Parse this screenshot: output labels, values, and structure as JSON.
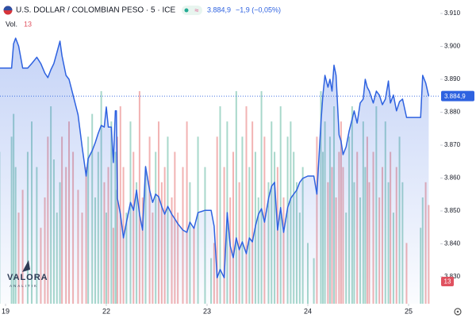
{
  "chart_data": {
    "type": "line",
    "title": "U.S. DOLLAR / COLOMBIAN PESO · 5 · ICE",
    "current_price": {
      "value": 3884.9,
      "label": "3.884,9"
    },
    "change_label": "−1,9 (−0,05%)",
    "logo": {
      "name": "VALORA",
      "tagline": "ANALITIK"
    },
    "xlim": [
      -0.055,
      4.315
    ],
    "xticks": [
      {
        "value": 0,
        "label": "19"
      },
      {
        "value": 1,
        "label": "22"
      },
      {
        "value": 2,
        "label": "23"
      },
      {
        "value": 3,
        "label": "24"
      },
      {
        "value": 4,
        "label": "25"
      }
    ],
    "ylim": [
      3821.8,
      3914.1
    ],
    "yticks": [
      {
        "value": 3910,
        "label": "3.910"
      },
      {
        "value": 3900,
        "label": "3.900"
      },
      {
        "value": 3890,
        "label": "3.890"
      },
      {
        "value": 3880,
        "label": "3.880"
      },
      {
        "value": 3870,
        "label": "3.870"
      },
      {
        "value": 3860,
        "label": "3.860"
      },
      {
        "value": 3850,
        "label": "3.850"
      },
      {
        "value": 3840,
        "label": "3.840"
      },
      {
        "value": 3830,
        "label": "3.830"
      }
    ],
    "x": [
      -0.06,
      0.06,
      0.08,
      0.1,
      0.13,
      0.17,
      0.22,
      0.26,
      0.31,
      0.35,
      0.39,
      0.42,
      0.45,
      0.48,
      0.51,
      0.54,
      0.56,
      0.6,
      0.63,
      0.67,
      0.72,
      0.76,
      0.8,
      0.82,
      0.86,
      0.89,
      0.92,
      0.95,
      0.98,
      1.0,
      1.02,
      1.05,
      1.07,
      1.09,
      1.1,
      1.11,
      1.14,
      1.17,
      1.2,
      1.24,
      1.27,
      1.3,
      1.33,
      1.36,
      1.39,
      1.43,
      1.46,
      1.49,
      1.52,
      1.55,
      1.58,
      1.61,
      1.65,
      1.68,
      1.71,
      1.76,
      1.8,
      1.83,
      1.87,
      1.91,
      1.98,
      2.04,
      2.07,
      2.1,
      2.13,
      2.17,
      2.2,
      2.23,
      2.26,
      2.29,
      2.32,
      2.35,
      2.39,
      2.42,
      2.45,
      2.48,
      2.51,
      2.54,
      2.57,
      2.61,
      2.64,
      2.67,
      2.7,
      2.73,
      2.76,
      2.8,
      2.83,
      2.86,
      2.89,
      2.92,
      2.95,
      3.0,
      3.06,
      3.09,
      3.13,
      3.15,
      3.17,
      3.2,
      3.22,
      3.24,
      3.26,
      3.28,
      3.31,
      3.33,
      3.35,
      3.38,
      3.41,
      3.44,
      3.46,
      3.49,
      3.52,
      3.55,
      3.57,
      3.59,
      3.61,
      3.65,
      3.68,
      3.71,
      3.74,
      3.77,
      3.8,
      3.82,
      3.85,
      3.88,
      3.91,
      3.94,
      3.98,
      4.12,
      4.14,
      4.17,
      4.2
    ],
    "series": [
      {
        "color": "#2e62e0",
        "values": [
          3893.4,
          3893.4,
          3900.8,
          3902.5,
          3900.1,
          3893.4,
          3893.4,
          3894.8,
          3896.7,
          3894.8,
          3891.9,
          3890.5,
          3892.9,
          3894.8,
          3898.2,
          3901.6,
          3897.2,
          3891.2,
          3890.0,
          3885.2,
          3879.2,
          3869.5,
          3860.6,
          3865.9,
          3868.3,
          3870.7,
          3873.6,
          3876.0,
          3875.5,
          3881.6,
          3875.5,
          3875.5,
          3864.7,
          3880.4,
          3880.4,
          3853.8,
          3849.0,
          3841.8,
          3846.6,
          3852.6,
          3850.2,
          3856.3,
          3849.0,
          3844.2,
          3863.5,
          3856.3,
          3852.6,
          3855.1,
          3854.3,
          3851.4,
          3849.0,
          3851.4,
          3849.0,
          3847.6,
          3846.1,
          3844.2,
          3843.5,
          3846.6,
          3844.7,
          3849.5,
          3850.2,
          3850.2,
          3845.4,
          3829.7,
          3832.2,
          3829.7,
          3849.5,
          3839.4,
          3835.8,
          3841.8,
          3838.2,
          3840.6,
          3837.0,
          3841.8,
          3840.6,
          3845.4,
          3849.0,
          3850.7,
          3846.6,
          3853.8,
          3857.5,
          3858.7,
          3844.2,
          3851.0,
          3843.5,
          3851.0,
          3853.8,
          3855.1,
          3856.3,
          3858.7,
          3859.9,
          3860.6,
          3860.6,
          3855.1,
          3876.7,
          3885.2,
          3891.2,
          3887.6,
          3890.0,
          3886.4,
          3894.3,
          3891.2,
          3873.1,
          3871.2,
          3867.1,
          3869.5,
          3874.3,
          3877.9,
          3880.4,
          3876.7,
          3882.8,
          3884.0,
          3890.0,
          3887.6,
          3886.4,
          3882.8,
          3886.4,
          3885.2,
          3882.3,
          3884.0,
          3889.5,
          3882.8,
          3885.2,
          3880.4,
          3883.2,
          3884.0,
          3878.4,
          3878.4,
          3891.2,
          3888.9,
          3884.9
        ]
      }
    ],
    "volume": {
      "name": "Vol.",
      "up_color": "#a8d8cb",
      "down_color": "#f2b3b3",
      "ylim": [
        0,
        40
      ],
      "values": [
        20,
        22,
        25,
        18,
        12,
        15,
        20,
        24,
        18,
        10,
        14,
        22,
        26,
        19,
        12,
        16,
        22,
        18,
        24,
        20,
        15,
        12,
        18,
        22,
        25,
        14,
        20,
        28,
        16,
        12,
        18,
        24,
        10,
        20,
        15,
        22,
        26,
        18,
        12,
        24,
        20,
        16,
        28,
        14,
        18,
        22,
        12,
        20,
        24,
        16,
        18,
        22,
        14,
        20,
        12,
        18,
        24,
        16,
        10,
        22,
        18,
        6,
        8,
        22,
        26,
        18,
        24,
        14,
        20,
        28,
        16,
        22,
        26,
        18,
        24,
        20,
        14,
        28,
        22,
        16,
        24,
        20,
        18,
        26,
        14,
        22,
        24,
        20,
        16,
        12,
        18,
        8,
        6,
        22,
        28,
        20,
        24,
        16,
        22,
        18,
        26,
        14,
        20,
        24,
        18,
        12,
        22,
        26,
        16,
        20,
        14,
        24,
        18,
        22,
        16,
        20,
        26,
        14,
        18,
        24,
        16,
        20,
        12,
        18,
        22,
        16,
        8,
        10,
        14,
        16,
        13
      ]
    }
  }
}
